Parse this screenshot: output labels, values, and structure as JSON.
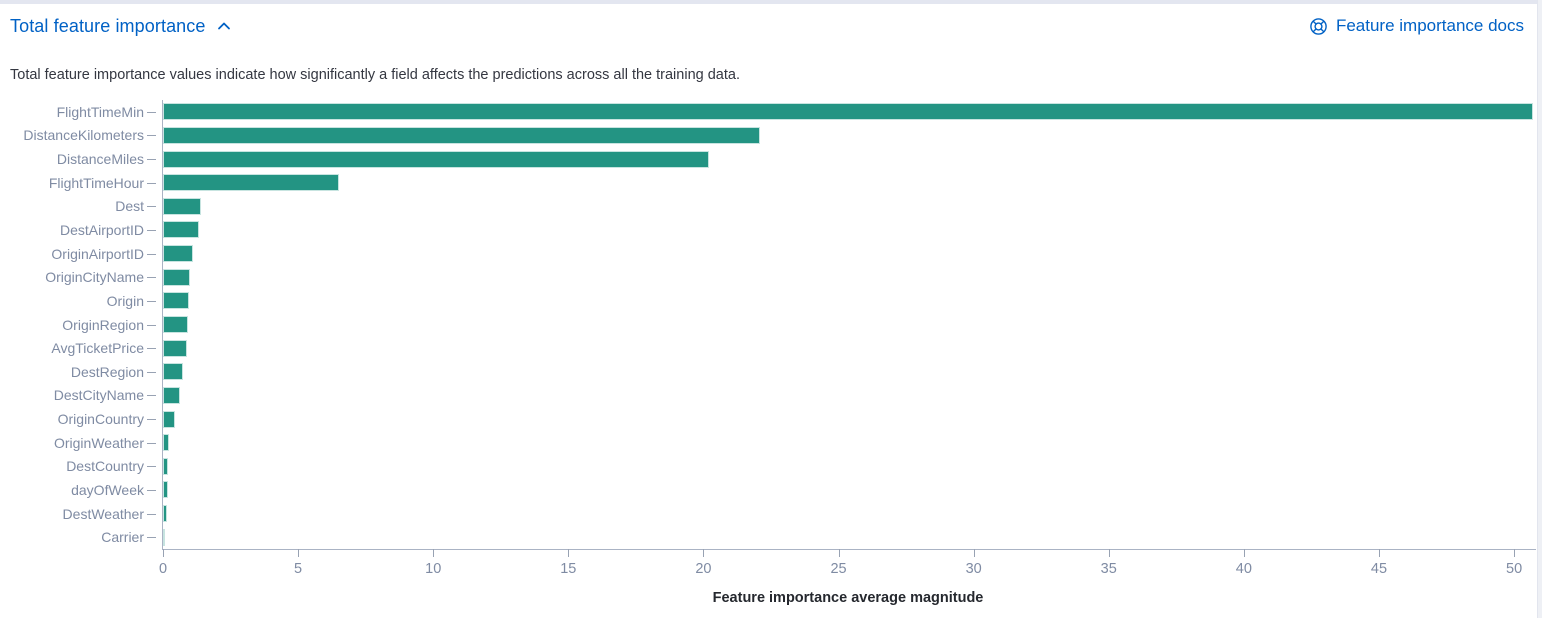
{
  "accordion": {
    "title": "Total feature importance",
    "docs_link_label": "Feature importance docs",
    "description": "Total feature importance values indicate how significantly a field affects the predictions across all the training data."
  },
  "colors": {
    "bar": "#239483",
    "link": "#0061c5",
    "axis_label": "#7f8ba3",
    "axis_line": "#aab3c4",
    "body_text": "#343741"
  },
  "chart_data": {
    "type": "bar",
    "orientation": "horizontal",
    "title": "",
    "xlabel": "Feature importance average magnitude",
    "ylabel": "",
    "categories": [
      "FlightTimeMin",
      "DistanceKilometers",
      "DistanceMiles",
      "FlightTimeHour",
      "Dest",
      "DestAirportID",
      "OriginAirportID",
      "OriginCityName",
      "Origin",
      "OriginRegion",
      "AvgTicketPrice",
      "DestRegion",
      "DestCityName",
      "OriginCountry",
      "OriginWeather",
      "DestCountry",
      "dayOfWeek",
      "DestWeather",
      "Carrier"
    ],
    "values": [
      50.7,
      22.1,
      20.2,
      6.5,
      1.4,
      1.35,
      1.1,
      1.0,
      0.95,
      0.92,
      0.9,
      0.74,
      0.62,
      0.44,
      0.22,
      0.19,
      0.18,
      0.15,
      0.07
    ],
    "xticks": [
      0,
      5,
      10,
      15,
      20,
      25,
      30,
      35,
      40,
      45,
      50
    ],
    "xlim": [
      0,
      50.7
    ],
    "grid": false,
    "legend": false
  }
}
